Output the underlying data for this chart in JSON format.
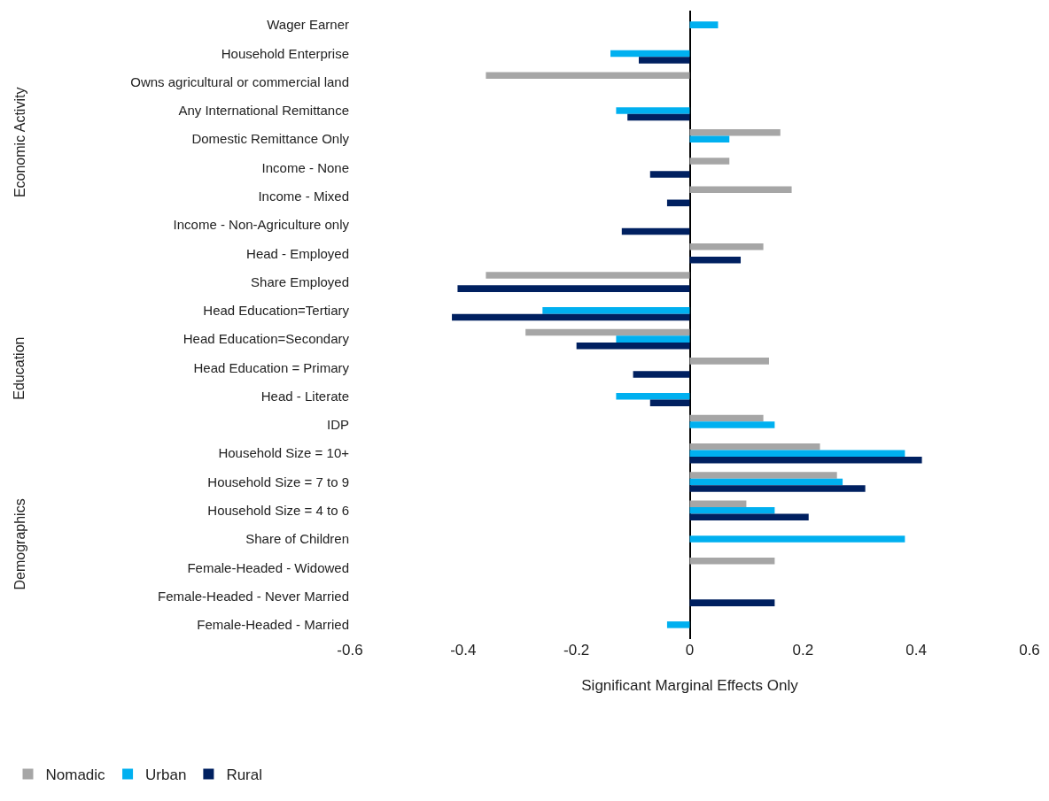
{
  "chart_data": {
    "type": "bar",
    "orientation": "horizontal",
    "xlabel": "Significant Marginal Effects Only",
    "categories": [
      "Wager Earner",
      "Household Enterprise",
      "Owns agricultural or commercial land",
      "Any International Remittance",
      "Domestic Remittance Only",
      "Income - None",
      "Income - Mixed",
      "Income - Non-Agriculture only",
      "Head - Employed",
      "Share Employed",
      "Head Education=Tertiary",
      "Head Education=Secondary",
      "Head Education = Primary",
      "Head - Literate",
      "IDP",
      "Household Size = 10+",
      "Household Size = 7 to 9",
      "Household Size = 4 to 6",
      "Share of Children",
      "Female-Headed - Widowed",
      "Female-Headed - Never Married",
      "Female-Headed - Married"
    ],
    "series": [
      {
        "name": "Nomadic",
        "color": "#a6a6a6",
        "values": [
          null,
          null,
          -0.36,
          null,
          0.16,
          0.07,
          0.18,
          null,
          0.13,
          -0.36,
          null,
          -0.29,
          0.14,
          null,
          0.13,
          0.23,
          0.26,
          0.1,
          null,
          0.15,
          null,
          null
        ]
      },
      {
        "name": "Urban",
        "color": "#00b0f0",
        "values": [
          0.05,
          -0.14,
          null,
          -0.13,
          0.07,
          null,
          null,
          null,
          null,
          null,
          -0.26,
          -0.13,
          null,
          -0.13,
          0.15,
          0.38,
          0.27,
          0.15,
          0.38,
          null,
          null,
          -0.04
        ]
      },
      {
        "name": "Rural",
        "color": "#002060",
        "values": [
          null,
          -0.09,
          null,
          -0.11,
          null,
          -0.07,
          -0.04,
          -0.12,
          0.09,
          -0.41,
          -0.42,
          -0.2,
          -0.1,
          -0.07,
          null,
          0.41,
          0.31,
          0.21,
          null,
          null,
          0.15,
          null
        ]
      }
    ],
    "xlim": [
      -0.6,
      0.6
    ],
    "xticks": [
      -0.6,
      -0.4,
      -0.2,
      0,
      0.2,
      0.4,
      0.6
    ],
    "legend": "bottom left",
    "annotations": [
      "Economic Activity",
      "Education",
      "Demographics"
    ]
  }
}
